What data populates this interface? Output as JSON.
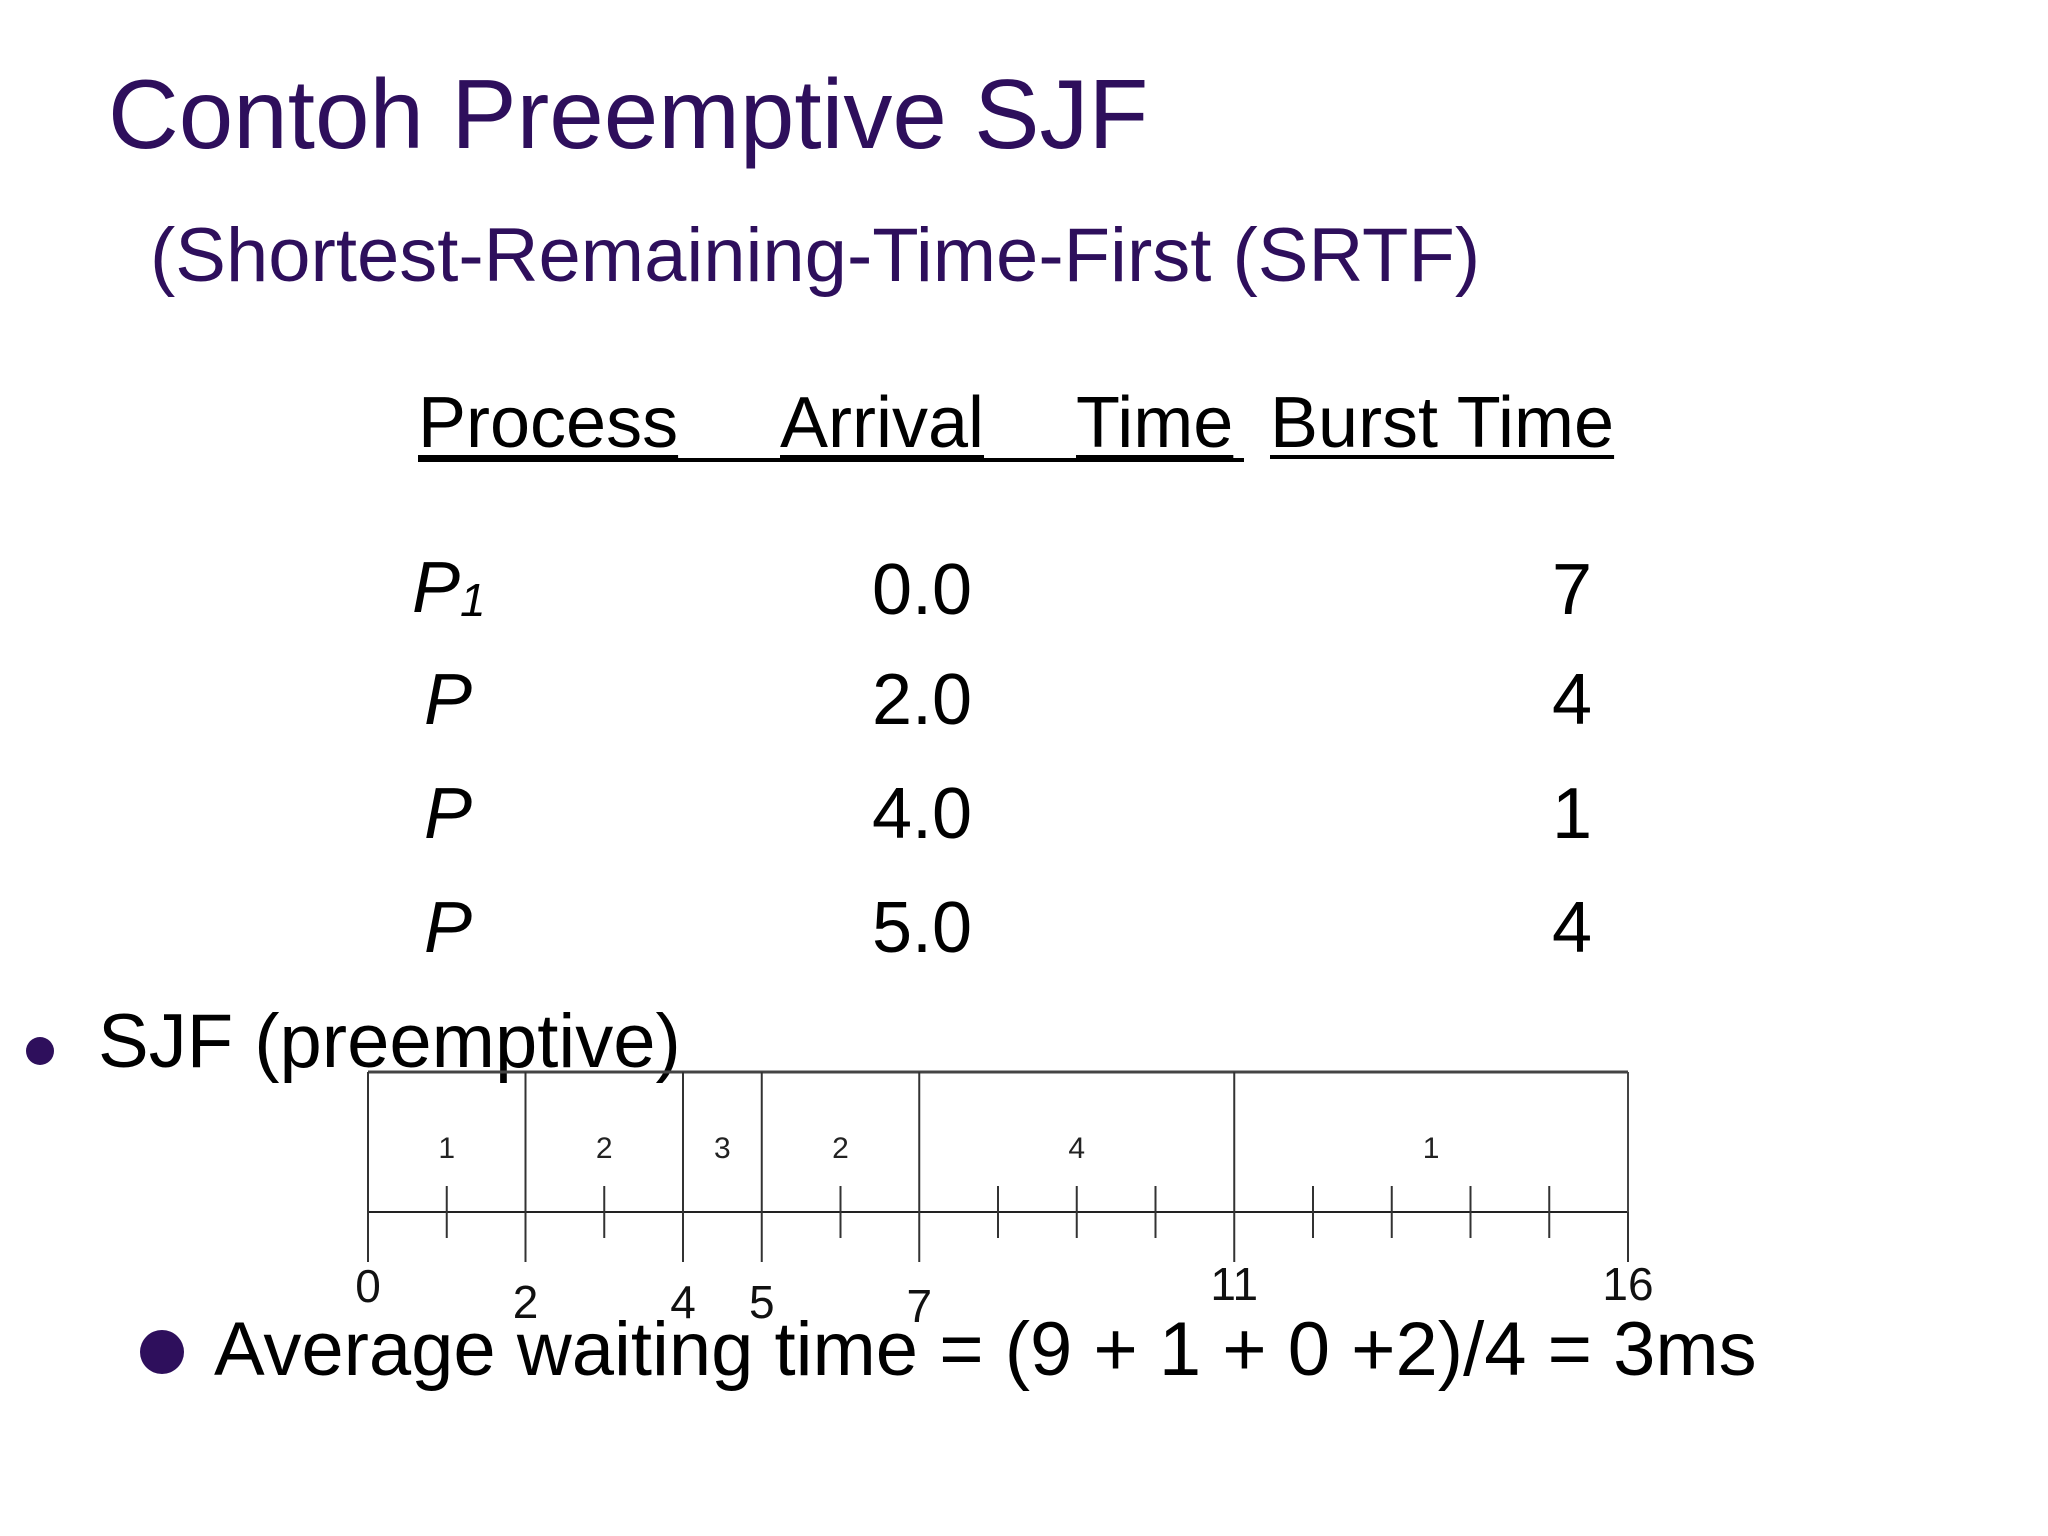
{
  "title": "Contoh Preemptive SJF",
  "subtitle": "(Shortest-Remaining-Time-First (SRTF)",
  "table": {
    "headers": [
      "Process",
      "Arrival",
      "Time",
      "Burst Time"
    ],
    "rows": [
      {
        "process": "P",
        "sub": "1",
        "arrival": "0.0",
        "burst": "7"
      },
      {
        "process": "P",
        "sub": "",
        "arrival": "2.0",
        "burst": "4"
      },
      {
        "process": "P",
        "sub": "",
        "arrival": "4.0",
        "burst": "1"
      },
      {
        "process": "P",
        "sub": "",
        "arrival": "5.0",
        "burst": "4"
      }
    ]
  },
  "bullets": {
    "schedule_label": "SJF (preemptive)",
    "average": "Average waiting time = (9 + 1 + 0 +2)/4 = 3ms"
  },
  "gantt": {
    "range": [
      0,
      16
    ],
    "segments": [
      {
        "process": "1",
        "start": 0,
        "end": 2
      },
      {
        "process": "2",
        "start": 2,
        "end": 4
      },
      {
        "process": "3",
        "start": 4,
        "end": 5
      },
      {
        "process": "2",
        "start": 5,
        "end": 7
      },
      {
        "process": "4",
        "start": 7,
        "end": 11
      },
      {
        "process": "1",
        "start": 11,
        "end": 16
      }
    ],
    "boundary_labels": [
      "0",
      "2",
      "4",
      "5",
      "7",
      "11",
      "16"
    ],
    "boundary_values": [
      0,
      2,
      4,
      5,
      7,
      11,
      16
    ],
    "minor_ticks": [
      1,
      3,
      6,
      8,
      9,
      10,
      12,
      13,
      14,
      15
    ]
  },
  "colors": {
    "title": "#2e0f5c",
    "bullet": "#2e0f5c",
    "text": "#000000"
  }
}
